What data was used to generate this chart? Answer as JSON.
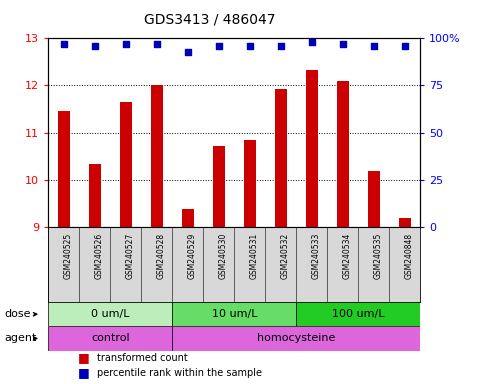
{
  "title": "GDS3413 / 486047",
  "samples": [
    "GSM240525",
    "GSM240526",
    "GSM240527",
    "GSM240528",
    "GSM240529",
    "GSM240530",
    "GSM240531",
    "GSM240532",
    "GSM240533",
    "GSM240534",
    "GSM240535",
    "GSM240848"
  ],
  "bar_values": [
    11.45,
    10.33,
    11.65,
    12.0,
    9.38,
    10.72,
    10.85,
    11.92,
    12.32,
    12.1,
    10.18,
    9.18
  ],
  "percentile_y_axis": [
    97,
    96,
    97,
    97,
    93,
    96,
    96,
    96,
    98,
    97,
    96,
    96
  ],
  "ylim_left": [
    9,
    13
  ],
  "ylim_right": [
    0,
    100
  ],
  "bar_color": "#cc0000",
  "dot_color": "#0000bb",
  "plot_bg_color": "#ffffff",
  "sample_bg_color": "#d8d8d8",
  "dose_colors": [
    "#bbeebb",
    "#66dd66",
    "#22cc22"
  ],
  "dose_labels": [
    "0 um/L",
    "10 um/L",
    "100 um/L"
  ],
  "dose_ranges": [
    [
      0,
      4
    ],
    [
      4,
      8
    ],
    [
      8,
      12
    ]
  ],
  "agent_color": "#dd66dd",
  "agent_labels": [
    "control",
    "homocysteine"
  ],
  "agent_ranges": [
    [
      0,
      4
    ],
    [
      4,
      12
    ]
  ],
  "dose_label": "dose",
  "agent_label": "agent",
  "legend_bar_label": "transformed count",
  "legend_dot_label": "percentile rank within the sample",
  "yticks_left": [
    9,
    10,
    11,
    12,
    13
  ],
  "yticks_right": [
    0,
    25,
    50,
    75,
    100
  ],
  "right_tick_labels": [
    "0",
    "25",
    "50",
    "75",
    "100%"
  ]
}
